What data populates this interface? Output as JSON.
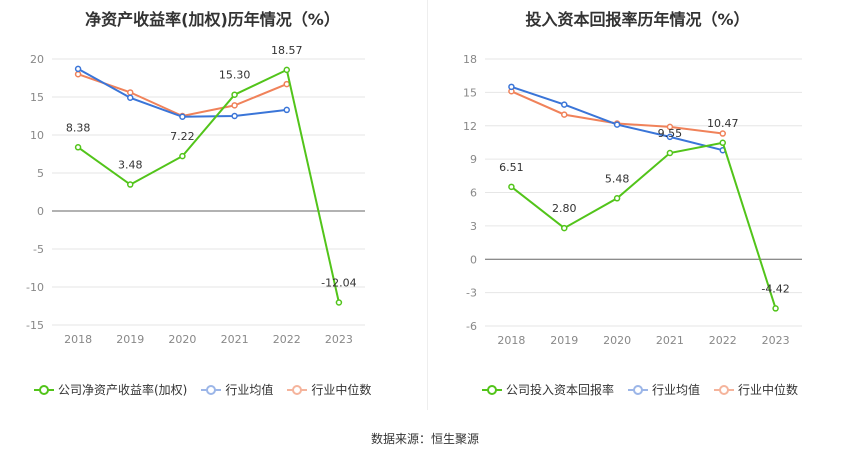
{
  "chart_data": [
    {
      "type": "line",
      "title": "净资产收益率(加权)历年情况（%）",
      "categories": [
        "2018",
        "2019",
        "2020",
        "2021",
        "2022",
        "2023"
      ],
      "ylim": [
        -15,
        20
      ],
      "yticks": [
        20,
        15,
        10,
        5,
        0,
        -5,
        -10,
        -15
      ],
      "series": [
        {
          "name": "公司净资产收益率(加权)",
          "color": "#52c41a",
          "values": [
            8.38,
            3.48,
            7.22,
            15.3,
            18.57,
            -12.04
          ],
          "labels": [
            "8.38",
            "3.48",
            "7.22",
            "15.30",
            "18.57",
            "-12.04"
          ]
        },
        {
          "name": "行业均值",
          "color": "#3a75d8",
          "values": [
            18.7,
            14.9,
            12.4,
            12.5,
            13.3,
            null
          ]
        },
        {
          "name": "行业中位数",
          "color": "#f0825a",
          "values": [
            18.0,
            15.6,
            12.5,
            13.9,
            16.7,
            null
          ]
        }
      ]
    },
    {
      "type": "line",
      "title": "投入资本回报率历年情况（%）",
      "categories": [
        "2018",
        "2019",
        "2020",
        "2021",
        "2022",
        "2023"
      ],
      "ylim": [
        -6,
        18
      ],
      "yticks": [
        18,
        15,
        12,
        9,
        6,
        3,
        0,
        -3,
        -6
      ],
      "series": [
        {
          "name": "公司投入资本回报率",
          "color": "#52c41a",
          "values": [
            6.51,
            2.8,
            5.48,
            9.55,
            10.47,
            -4.42
          ],
          "labels": [
            "6.51",
            "2.80",
            "5.48",
            "9.55",
            "10.47",
            "-4.42"
          ]
        },
        {
          "name": "行业均值",
          "color": "#3a75d8",
          "values": [
            15.5,
            13.9,
            12.1,
            11.0,
            9.8,
            null
          ]
        },
        {
          "name": "行业中位数",
          "color": "#f0825a",
          "values": [
            15.1,
            13.0,
            12.2,
            11.9,
            11.3,
            null
          ]
        }
      ]
    }
  ],
  "source_text": "数据来源：恒生聚源"
}
